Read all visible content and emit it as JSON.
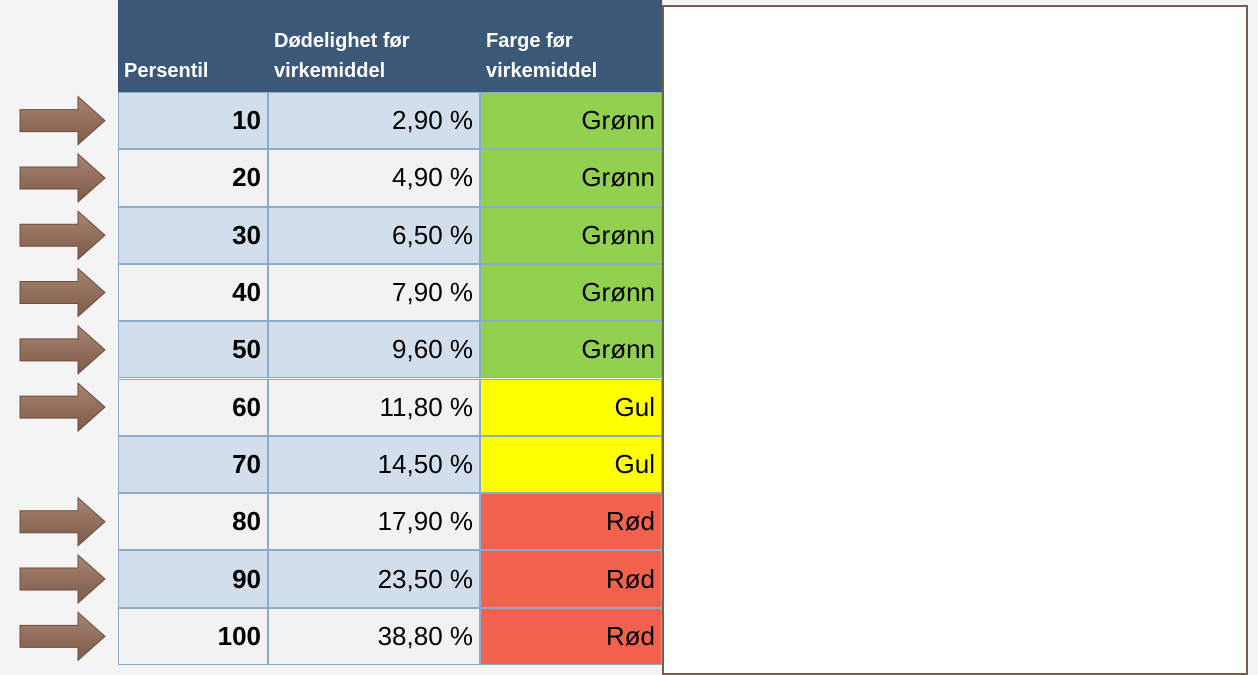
{
  "table": {
    "header": [
      "Persentil",
      "Dødelighet før virkemiddel",
      "Farge før virkemiddel"
    ],
    "rows": [
      {
        "persentil": 10,
        "dodelighet": "2,90 %",
        "farge": "Grønn",
        "color": "#92d050"
      },
      {
        "persentil": 20,
        "dodelighet": "4,90 %",
        "farge": "Grønn",
        "color": "#92d050"
      },
      {
        "persentil": 30,
        "dodelighet": "6,50 %",
        "farge": "Grønn",
        "color": "#92d050"
      },
      {
        "persentil": 40,
        "dodelighet": "7,90 %",
        "farge": "Grønn",
        "color": "#92d050"
      },
      {
        "persentil": 50,
        "dodelighet": "9,60 %",
        "farge": "Grønn",
        "color": "#92d050"
      },
      {
        "persentil": 60,
        "dodelighet": "11,80 %",
        "farge": "Gul",
        "color": "#ffff00"
      },
      {
        "persentil": 70,
        "dodelighet": "14,50 %",
        "farge": "Gul",
        "color": "#ffff00"
      },
      {
        "persentil": 80,
        "dodelighet": "17,90 %",
        "farge": "Rød",
        "color": "#f0624d"
      },
      {
        "persentil": 90,
        "dodelighet": "23,50 %",
        "farge": "Rød",
        "color": "#f0624d"
      },
      {
        "persentil": 100,
        "dodelighet": "38,80 %",
        "farge": "Rød",
        "color": "#f0624d"
      }
    ]
  }
}
